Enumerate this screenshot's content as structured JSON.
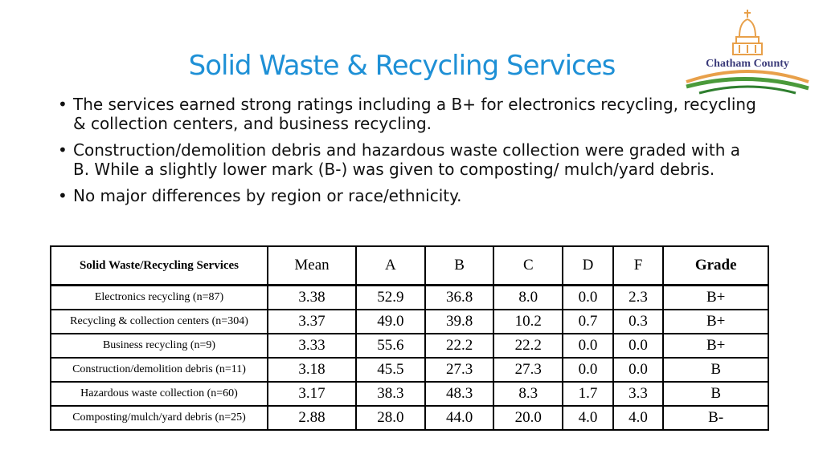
{
  "title": "Solid Waste & Recycling Services",
  "logo": {
    "text": "Chatham County",
    "icon": "courthouse-dome-logo"
  },
  "bullets": [
    "The services earned strong ratings including a B+ for electronics recycling, recycling & collection centers, and business recycling.",
    "Construction/demolition debris and hazardous waste collection were graded with a B.  While a slightly lower mark (B-) was given to composting/ mulch/yard debris.",
    "No major differences by region or race/ethnicity."
  ],
  "table": {
    "headers": [
      "Solid Waste/Recycling Services",
      "Mean",
      "A",
      "B",
      "C",
      "D",
      "F",
      "Grade"
    ],
    "rows": [
      [
        "Electronics recycling (n=87)",
        "3.38",
        "52.9",
        "36.8",
        "8.0",
        "0.0",
        "2.3",
        "B+"
      ],
      [
        "Recycling & collection centers (n=304)",
        "3.37",
        "49.0",
        "39.8",
        "10.2",
        "0.7",
        "0.3",
        "B+"
      ],
      [
        "Business recycling (n=9)",
        "3.33",
        "55.6",
        "22.2",
        "22.2",
        "0.0",
        "0.0",
        "B+"
      ],
      [
        "Construction/demolition debris (n=11)",
        "3.18",
        "45.5",
        "27.3",
        "27.3",
        "0.0",
        "0.0",
        "B"
      ],
      [
        "Hazardous waste collection (n=60)",
        "3.17",
        "38.3",
        "48.3",
        "8.3",
        "1.7",
        "3.3",
        "B"
      ],
      [
        "Composting/mulch/yard debris (n=25)",
        "2.88",
        "28.0",
        "44.0",
        "20.0",
        "4.0",
        "4.0",
        "B-"
      ]
    ]
  },
  "colors": {
    "title": "#1e90d6",
    "logo_text": "#3b3b7a",
    "logo_orange": "#e8a04a",
    "logo_green": "#4a9a3a"
  }
}
